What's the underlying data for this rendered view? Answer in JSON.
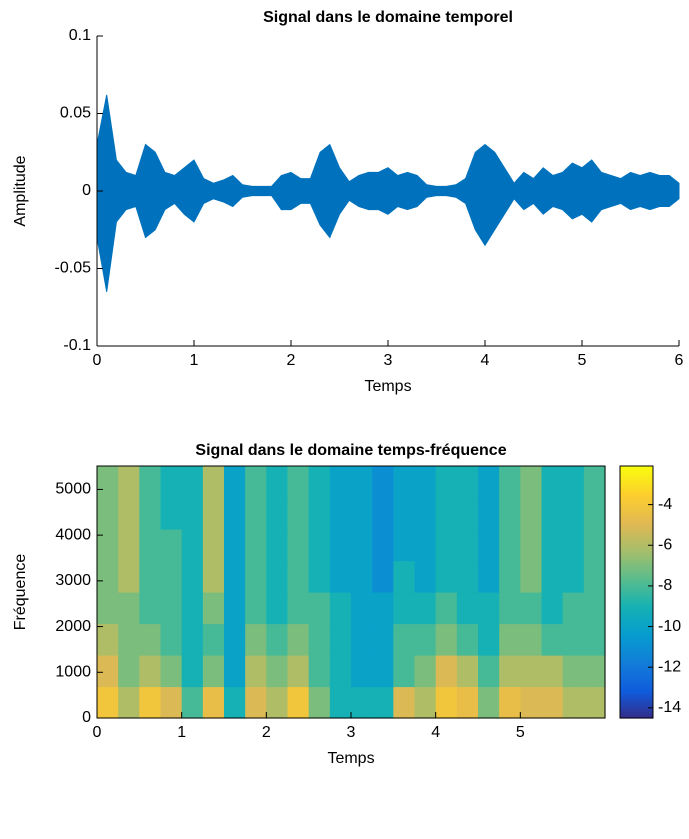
{
  "chart_data": [
    {
      "type": "band",
      "title": "Signal dans le domaine temporel",
      "xlabel": "Temps",
      "ylabel": "Amplitude",
      "color": "#0072bd",
      "x": [
        0,
        0.1,
        0.2,
        0.3,
        0.4,
        0.5,
        0.6,
        0.7,
        0.8,
        0.9,
        1,
        1.1,
        1.2,
        1.3,
        1.4,
        1.5,
        1.6,
        1.7,
        1.8,
        1.9,
        2,
        2.1,
        2.2,
        2.3,
        2.4,
        2.5,
        2.6,
        2.7,
        2.8,
        2.9,
        3,
        3.1,
        3.2,
        3.3,
        3.4,
        3.5,
        3.6,
        3.7,
        3.8,
        3.9,
        4,
        4.1,
        4.2,
        4.3,
        4.4,
        4.5,
        4.6,
        4.7,
        4.8,
        4.9,
        5,
        5.1,
        5.2,
        5.3,
        5.4,
        5.5,
        5.6,
        5.7,
        5.8,
        5.9,
        6
      ],
      "upper": [
        0.03,
        0.062,
        0.02,
        0.012,
        0.01,
        0.03,
        0.025,
        0.012,
        0.01,
        0.015,
        0.02,
        0.008,
        0.005,
        0.007,
        0.01,
        0.004,
        0.003,
        0.003,
        0.003,
        0.01,
        0.012,
        0.008,
        0.008,
        0.025,
        0.03,
        0.015,
        0.006,
        0.01,
        0.012,
        0.012,
        0.015,
        0.01,
        0.012,
        0.01,
        0.004,
        0.003,
        0.003,
        0.004,
        0.008,
        0.025,
        0.03,
        0.025,
        0.015,
        0.005,
        0.012,
        0.008,
        0.015,
        0.01,
        0.012,
        0.018,
        0.015,
        0.02,
        0.012,
        0.01,
        0.008,
        0.012,
        0.01,
        0.012,
        0.01,
        0.01,
        0.005
      ],
      "lower": [
        -0.03,
        -0.065,
        -0.02,
        -0.012,
        -0.01,
        -0.03,
        -0.025,
        -0.012,
        -0.008,
        -0.015,
        -0.02,
        -0.008,
        -0.005,
        -0.007,
        -0.01,
        -0.004,
        -0.003,
        -0.003,
        -0.003,
        -0.012,
        -0.012,
        -0.008,
        -0.008,
        -0.022,
        -0.03,
        -0.015,
        -0.006,
        -0.01,
        -0.012,
        -0.012,
        -0.015,
        -0.01,
        -0.012,
        -0.01,
        -0.004,
        -0.003,
        -0.003,
        -0.004,
        -0.008,
        -0.025,
        -0.035,
        -0.025,
        -0.015,
        -0.005,
        -0.012,
        -0.008,
        -0.015,
        -0.01,
        -0.012,
        -0.018,
        -0.015,
        -0.02,
        -0.012,
        -0.01,
        -0.008,
        -0.012,
        -0.01,
        -0.012,
        -0.01,
        -0.01,
        -0.005
      ],
      "xlim": [
        0,
        6
      ],
      "xticks": [
        0,
        1,
        2,
        3,
        4,
        5,
        6
      ],
      "ylim": [
        -0.1,
        0.1
      ],
      "yticks": [
        -0.1,
        -0.05,
        0,
        0.05,
        0.1
      ]
    },
    {
      "type": "heatmap",
      "title": "Signal dans le domaine temps-fréquence",
      "xlabel": "Temps",
      "ylabel": "Fréquence",
      "x": [
        0.125,
        0.375,
        0.625,
        0.875,
        1.125,
        1.375,
        1.625,
        1.875,
        2.125,
        2.375,
        2.625,
        2.875,
        3.125,
        3.375,
        3.625,
        3.875,
        4.125,
        4.375,
        4.625,
        4.875,
        5.125,
        5.375,
        5.625,
        5.875
      ],
      "y": [
        344.53,
        1033.59,
        1722.66,
        2411.72,
        3100.78,
        3789.84,
        4478.91,
        5167.97
      ],
      "z": [
        [
          -4,
          -6,
          -4,
          -5,
          -8,
          -4.5,
          -9,
          -5,
          -6,
          -4,
          -7,
          -9,
          -9,
          -9,
          -5,
          -6,
          -4,
          -4.5,
          -7,
          -4.5,
          -5,
          -5,
          -6,
          -6
        ],
        [
          -5,
          -7,
          -6,
          -7,
          -9,
          -7,
          -10,
          -6,
          -7,
          -6,
          -8,
          -9,
          -10,
          -10,
          -8,
          -7,
          -5,
          -6,
          -8,
          -6,
          -6,
          -6,
          -7,
          -7
        ],
        [
          -6,
          -7,
          -7,
          -8,
          -9,
          -8,
          -10,
          -7,
          -8,
          -7,
          -8,
          -9,
          -10,
          -10,
          -8,
          -8,
          -7,
          -8,
          -9,
          -7,
          -7,
          -8,
          -8,
          -8
        ],
        [
          -7,
          -7,
          -8,
          -8,
          -9,
          -7,
          -10,
          -8,
          -9,
          -8,
          -8,
          -9,
          -10,
          -10,
          -9,
          -9,
          -8,
          -9,
          -9,
          -8,
          -8,
          -9,
          -8,
          -8
        ],
        [
          -7,
          -6,
          -8,
          -8,
          -9,
          -6,
          -10,
          -8,
          -9,
          -8,
          -9,
          -10,
          -10,
          -11,
          -9,
          -10,
          -9,
          -9,
          -10,
          -8,
          -7,
          -9,
          -9,
          -8
        ],
        [
          -7,
          -6,
          -8,
          -8,
          -9,
          -6,
          -10,
          -8,
          -9,
          -8,
          -9,
          -10,
          -10,
          -11,
          -10,
          -10,
          -9,
          -9,
          -10,
          -8,
          -7,
          -9,
          -9,
          -8
        ],
        [
          -7,
          -6,
          -8,
          -9,
          -9,
          -6,
          -10,
          -8,
          -9,
          -8,
          -9,
          -10,
          -10,
          -11,
          -10,
          -10,
          -9,
          -9,
          -10,
          -8,
          -7,
          -9,
          -9,
          -8
        ],
        [
          -7,
          -6,
          -8,
          -9,
          -9,
          -6,
          -10,
          -8,
          -9,
          -8,
          -9,
          -10,
          -10,
          -11,
          -10,
          -10,
          -9,
          -9,
          -10,
          -8,
          -7,
          -9,
          -9,
          -8
        ]
      ],
      "xlim": [
        0,
        6
      ],
      "xticks": [
        0,
        1,
        2,
        3,
        4,
        5
      ],
      "ylim": [
        0,
        5512.5
      ],
      "yticks": [
        0,
        1000,
        2000,
        3000,
        4000,
        5000
      ],
      "clim": [
        -14.5,
        -2.1
      ],
      "cticks": [
        -14,
        -12,
        -10,
        -8,
        -6,
        -4
      ]
    }
  ]
}
